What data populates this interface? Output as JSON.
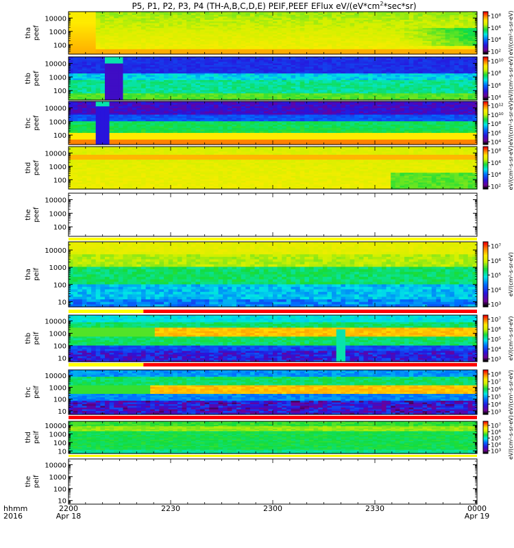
{
  "chart_data": {
    "type": "heatmap",
    "title": "P5, P1, P2, P3, P4 (TH-A,B,C,D,E) PEIF,PEEF EFlux eV/(eV*cm",
    "title_sup": "2",
    "title_tail": "*sec*sr)",
    "x_axis": {
      "row1_label": "hhmm",
      "row2_label": "2016",
      "ticks": [
        {
          "value": 0,
          "label": "2200",
          "sublabel": "Apr 18"
        },
        {
          "value": 30,
          "label": "2230",
          "sublabel": ""
        },
        {
          "value": 60,
          "label": "2300",
          "sublabel": ""
        },
        {
          "value": 90,
          "label": "2330",
          "sublabel": ""
        },
        {
          "value": 120,
          "label": "0000",
          "sublabel": "Apr 19"
        }
      ],
      "range_minutes": [
        0,
        120
      ]
    },
    "y_scale": "log",
    "colorbar_scale": "log",
    "panels": [
      {
        "probe": "tha",
        "species": "peef",
        "yticks": [
          "10000",
          "1000",
          "100"
        ],
        "ymin": 20,
        "ymax": 30000,
        "cbar_ticks": [
          "10⁸",
          "10⁶",
          "10⁴",
          "10²"
        ],
        "cbar_label": "eV/(cm²-s-sr-eV)",
        "pattern": "ee_a",
        "has_data": true
      },
      {
        "probe": "thb",
        "species": "peef",
        "yticks": [
          "10000",
          "1000",
          "100"
        ],
        "ymin": 20,
        "ymax": 30000,
        "cbar_ticks": [
          "10¹⁰",
          "10⁸",
          "10⁶",
          "10⁴"
        ],
        "cbar_label": "eV/(cm²-s-sr-eV)",
        "pattern": "ee_b",
        "has_data": true
      },
      {
        "probe": "thc",
        "species": "peef",
        "yticks": [
          "10000",
          "1000",
          "100"
        ],
        "ymin": 20,
        "ymax": 30000,
        "cbar_ticks": [
          "10¹²",
          "10¹⁰",
          "10⁸",
          "10⁶",
          "10⁴"
        ],
        "cbar_label": "eV/(cm²-s-sr-eV)",
        "pattern": "ee_c",
        "has_data": true
      },
      {
        "probe": "thd",
        "species": "peef",
        "yticks": [
          "10000",
          "1000",
          "100"
        ],
        "ymin": 20,
        "ymax": 30000,
        "cbar_ticks": [
          "10⁸",
          "10⁶",
          "10⁴",
          "10²"
        ],
        "cbar_label": "eV/(cm²-s-sr-eV)",
        "pattern": "ee_d",
        "has_data": true
      },
      {
        "probe": "the",
        "species": "peef",
        "yticks": [
          "10000",
          "1000",
          "100"
        ],
        "ymin": 20,
        "ymax": 30000,
        "cbar_ticks": [],
        "cbar_label": "",
        "pattern": "empty",
        "has_data": false
      },
      {
        "probe": "tha",
        "species": "peif",
        "yticks": [
          "10000",
          "1000",
          "100",
          "10"
        ],
        "ymin": 5,
        "ymax": 30000,
        "cbar_ticks": [
          "10⁷",
          "10⁶",
          "10⁵",
          "10⁴",
          "10³"
        ],
        "cbar_label": "eV/(cm²-s-sr-eV)",
        "pattern": "ei_a",
        "has_data": true
      },
      {
        "probe": "thb",
        "species": "peif",
        "yticks": [
          "10000",
          "1000",
          "100",
          "10"
        ],
        "ymin": 5,
        "ymax": 30000,
        "cbar_ticks": [
          "10⁷",
          "10⁶",
          "10⁵",
          "10⁴",
          "10³"
        ],
        "cbar_label": "eV/(cm²-s-sr-eV)",
        "pattern": "ei_b",
        "has_data": true
      },
      {
        "probe": "thc",
        "species": "peif",
        "yticks": [
          "10000",
          "1000",
          "100",
          "10"
        ],
        "ymin": 5,
        "ymax": 30000,
        "cbar_ticks": [
          "10⁸",
          "10⁷",
          "10⁶",
          "10⁵",
          "10⁴",
          "10³"
        ],
        "cbar_label": "eV/(cm²-s-sr-eV)",
        "pattern": "ei_c",
        "has_data": true
      },
      {
        "probe": "thd",
        "species": "peif",
        "yticks": [
          "10000",
          "1000",
          "100",
          "10"
        ],
        "ymin": 5,
        "ymax": 30000,
        "cbar_ticks": [
          "10⁷",
          "10⁶",
          "10⁵",
          "10⁴",
          "10³"
        ],
        "cbar_label": "eV/(cm²-s-sr-eV)",
        "pattern": "ei_d",
        "has_data": true
      },
      {
        "probe": "the",
        "species": "peif",
        "yticks": [
          "10000",
          "1000",
          "100",
          "10"
        ],
        "ymin": 5,
        "ymax": 30000,
        "cbar_ticks": [],
        "cbar_label": "",
        "pattern": "empty",
        "has_data": false
      }
    ],
    "status_bars": [
      {
        "after_panel": 4,
        "segments": [
          {
            "from": 0,
            "to": 120,
            "color": "#ffff00"
          }
        ]
      },
      {
        "after_panel": 5,
        "segments": [
          {
            "from": 0,
            "to": 22,
            "color": "#ffff00"
          },
          {
            "from": 22,
            "to": 120,
            "color": "#ff0000"
          }
        ]
      },
      {
        "after_panel": 6,
        "segments": [
          {
            "from": 0,
            "to": 22,
            "color": "#ffff00"
          },
          {
            "from": 22,
            "to": 120,
            "color": "#ff0000"
          }
        ]
      },
      {
        "after_panel": 7,
        "segments": [
          {
            "from": 0,
            "to": 120,
            "color": "#ff0000"
          }
        ]
      },
      {
        "after_panel": 8,
        "segments": [
          {
            "from": 0,
            "to": 120,
            "color": "#ffff00"
          }
        ]
      }
    ]
  }
}
